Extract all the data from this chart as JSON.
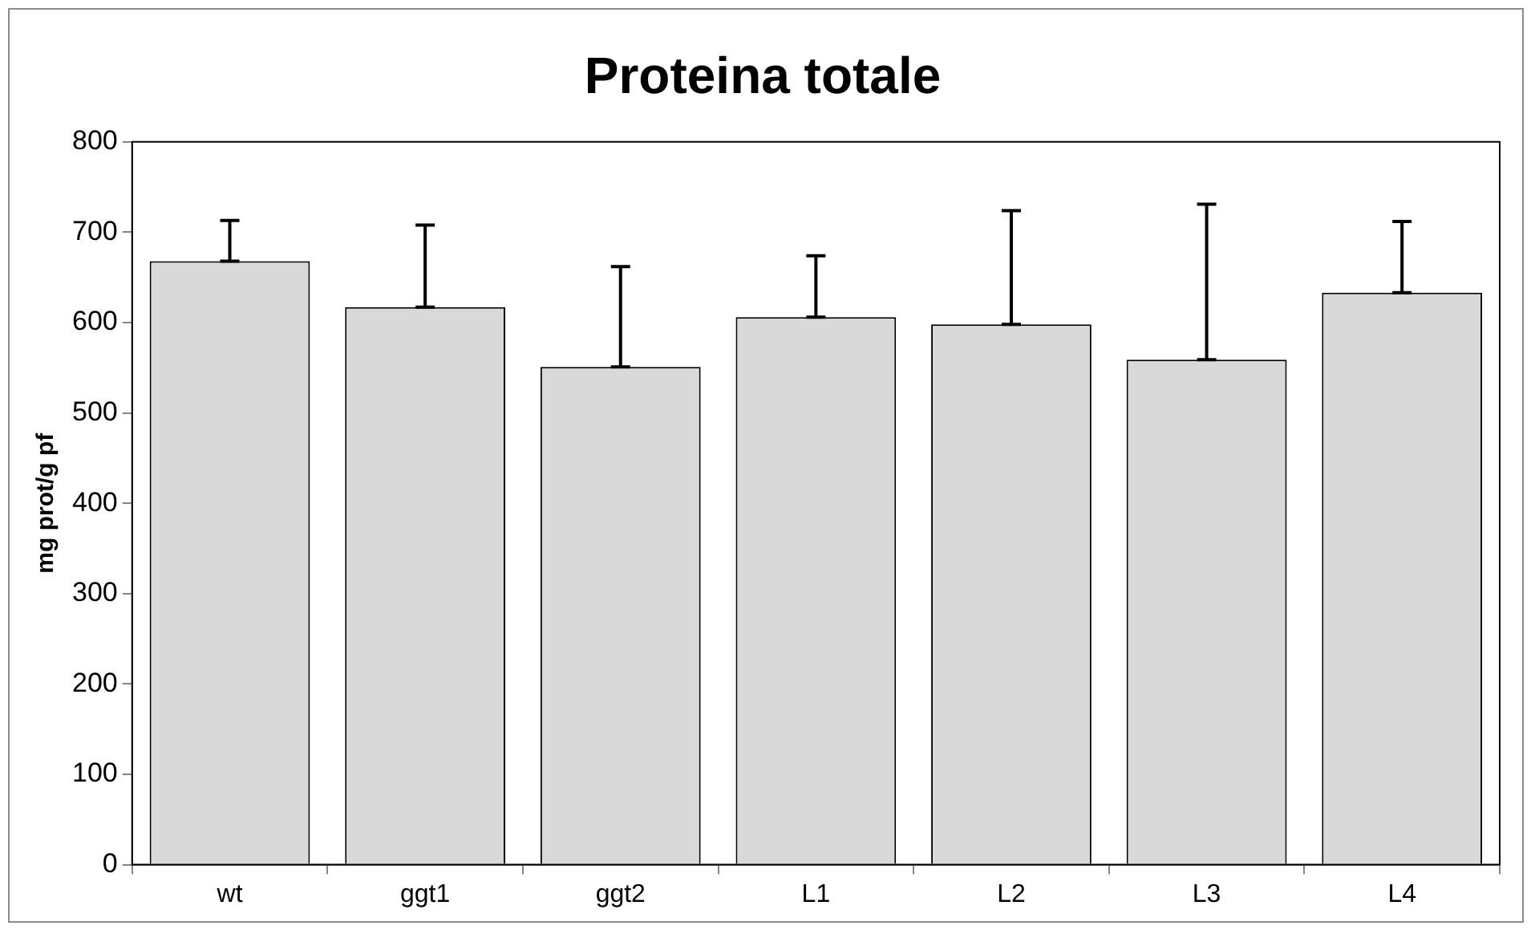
{
  "chart_data": {
    "type": "bar",
    "title": "Proteina totale",
    "ylabel": "mg prot/g pf",
    "categories": [
      "wt",
      "ggt1",
      "ggt2",
      "L1",
      "L2",
      "L3",
      "L4"
    ],
    "values": [
      668,
      617,
      551,
      606,
      598,
      559,
      633
    ],
    "errors": [
      [
        668,
        713
      ],
      [
        617,
        708
      ],
      [
        551,
        662
      ],
      [
        606,
        674
      ],
      [
        598,
        724
      ],
      [
        559,
        731
      ],
      [
        633,
        712
      ]
    ],
    "color": "#d9d9d9",
    "ylim": [
      0,
      800
    ],
    "yticks": [
      0,
      100,
      200,
      300,
      400,
      500,
      600,
      700,
      800
    ],
    "grid": false,
    "legend": false
  }
}
